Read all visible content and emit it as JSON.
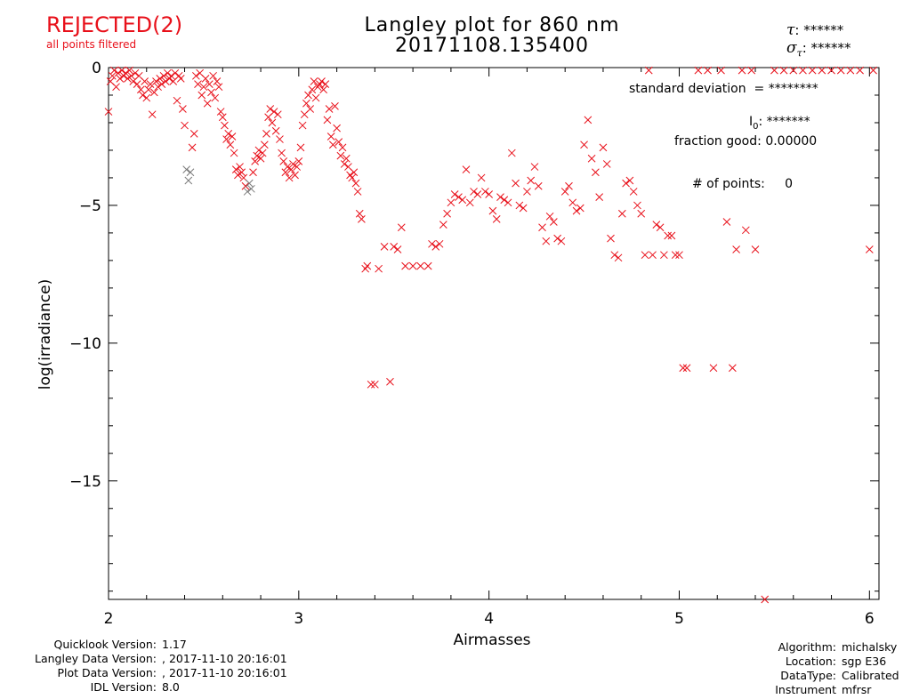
{
  "status": {
    "label": "REJECTED(2)",
    "sublabel": "all points filtered"
  },
  "header": {
    "title": "Langley plot for 860 nm",
    "subtitle": "20171108.135400",
    "tau_value": "******",
    "sigma_tau_value": "******"
  },
  "stats": {
    "std_label": "standard deviation",
    "std_value": "= ********",
    "i0_label": "I",
    "i0_sub": "0",
    "i0_value": ": *******",
    "fraction_label": "fraction good:",
    "fraction_value": "0.00000",
    "npoints_label": "# of points:",
    "npoints_value": "0"
  },
  "footer_left": [
    {
      "key": "Quicklook Version:",
      "value": "1.17"
    },
    {
      "key": "Langley Data Version:",
      "value": ", 2017-11-10 20:16:01"
    },
    {
      "key": "Plot Data Version:",
      "value": ", 2017-11-10 20:16:01"
    },
    {
      "key": "IDL Version:",
      "value": "8.0"
    }
  ],
  "footer_right": [
    {
      "key": "Algorithm:",
      "value": "michalsky"
    },
    {
      "key": "Location:",
      "value": "sgp E36"
    },
    {
      "key": "DataType:",
      "value": "Calibrated"
    },
    {
      "key": "Instrument",
      "value": "mfrsr"
    }
  ],
  "chart_data": {
    "type": "scatter",
    "xlabel": "Airmasses",
    "ylabel": "log(irradiance)",
    "xlim": [
      2,
      6.05
    ],
    "ylim": [
      -19.3,
      0
    ],
    "x_ticks": [
      2,
      3,
      4,
      5,
      6
    ],
    "y_ticks": [
      0,
      -5,
      -10,
      -15
    ],
    "marker": "x",
    "marker_color": "#e8101a",
    "dense_marker_color": "#7a7a7a",
    "series": [
      {
        "points": [
          [
            2.0,
            -1.6
          ],
          [
            2.01,
            -0.5
          ],
          [
            2.02,
            -0.3
          ],
          [
            2.03,
            -0.1
          ],
          [
            2.04,
            -0.7
          ],
          [
            2.05,
            -0.2
          ],
          [
            2.06,
            -0.4
          ],
          [
            2.07,
            -0.1
          ],
          [
            2.08,
            -0.3
          ],
          [
            2.09,
            -0.2
          ],
          [
            2.1,
            -0.4
          ],
          [
            2.11,
            -0.1
          ],
          [
            2.12,
            -0.3
          ],
          [
            2.13,
            -0.5
          ],
          [
            2.14,
            -0.2
          ],
          [
            2.15,
            -0.6
          ],
          [
            2.16,
            -0.3
          ],
          [
            2.17,
            -0.8
          ],
          [
            2.18,
            -1.0
          ],
          [
            2.19,
            -0.5
          ],
          [
            2.2,
            -1.1
          ],
          [
            2.21,
            -0.8
          ],
          [
            2.22,
            -0.6
          ],
          [
            2.23,
            -1.7
          ],
          [
            2.24,
            -0.9
          ],
          [
            2.25,
            -0.5
          ],
          [
            2.26,
            -0.7
          ],
          [
            2.27,
            -0.4
          ],
          [
            2.28,
            -0.6
          ],
          [
            2.29,
            -0.3
          ],
          [
            2.3,
            -0.5
          ],
          [
            2.31,
            -0.2
          ],
          [
            2.32,
            -0.4
          ],
          [
            2.33,
            -0.3
          ],
          [
            2.34,
            -0.5
          ],
          [
            2.35,
            -0.2
          ],
          [
            2.36,
            -1.2
          ],
          [
            2.37,
            -0.3
          ],
          [
            2.38,
            -0.4
          ],
          [
            2.39,
            -1.5
          ],
          [
            2.4,
            -2.1
          ],
          [
            2.41,
            -3.7
          ],
          [
            2.42,
            -4.1
          ],
          [
            2.43,
            -3.8
          ],
          [
            2.44,
            -2.9
          ],
          [
            2.45,
            -2.4
          ],
          [
            2.46,
            -0.3
          ],
          [
            2.47,
            -0.6
          ],
          [
            2.48,
            -0.2
          ],
          [
            2.49,
            -1.0
          ],
          [
            2.5,
            -0.7
          ],
          [
            2.51,
            -0.4
          ],
          [
            2.52,
            -1.3
          ],
          [
            2.53,
            -0.6
          ],
          [
            2.54,
            -0.9
          ],
          [
            2.55,
            -0.3
          ],
          [
            2.56,
            -1.1
          ],
          [
            2.57,
            -0.5
          ],
          [
            2.58,
            -0.7
          ],
          [
            2.59,
            -1.6
          ],
          [
            2.6,
            -1.8
          ],
          [
            2.61,
            -2.1
          ],
          [
            2.62,
            -2.6
          ],
          [
            2.63,
            -2.4
          ],
          [
            2.64,
            -2.8
          ],
          [
            2.65,
            -2.5
          ],
          [
            2.66,
            -3.1
          ],
          [
            2.67,
            -3.7
          ],
          [
            2.68,
            -3.9
          ],
          [
            2.69,
            -3.6
          ],
          [
            2.7,
            -3.8
          ],
          [
            2.71,
            -4.0
          ],
          [
            2.72,
            -4.3
          ],
          [
            2.73,
            -4.5
          ],
          [
            2.74,
            -4.2
          ],
          [
            2.75,
            -4.4
          ],
          [
            2.76,
            -3.8
          ],
          [
            2.77,
            -3.4
          ],
          [
            2.78,
            -3.2
          ],
          [
            2.79,
            -3.0
          ],
          [
            2.8,
            -3.3
          ],
          [
            2.81,
            -3.1
          ],
          [
            2.82,
            -2.8
          ],
          [
            2.83,
            -2.4
          ],
          [
            2.84,
            -1.8
          ],
          [
            2.85,
            -1.5
          ],
          [
            2.86,
            -2.0
          ],
          [
            2.87,
            -1.6
          ],
          [
            2.88,
            -2.3
          ],
          [
            2.89,
            -1.7
          ],
          [
            2.9,
            -2.6
          ],
          [
            2.91,
            -3.1
          ],
          [
            2.92,
            -3.4
          ],
          [
            2.93,
            -3.8
          ],
          [
            2.94,
            -3.6
          ],
          [
            2.95,
            -4.0
          ],
          [
            2.96,
            -3.7
          ],
          [
            2.97,
            -3.5
          ],
          [
            2.98,
            -3.9
          ],
          [
            2.99,
            -3.6
          ],
          [
            3.0,
            -3.4
          ],
          [
            3.01,
            -2.9
          ],
          [
            3.02,
            -2.1
          ],
          [
            3.03,
            -1.7
          ],
          [
            3.04,
            -1.3
          ],
          [
            3.05,
            -1.0
          ],
          [
            3.06,
            -1.5
          ],
          [
            3.07,
            -0.8
          ],
          [
            3.08,
            -0.5
          ],
          [
            3.09,
            -1.1
          ],
          [
            3.1,
            -0.7
          ],
          [
            3.11,
            -0.6
          ],
          [
            3.12,
            -0.5
          ],
          [
            3.13,
            -0.8
          ],
          [
            3.14,
            -0.6
          ],
          [
            3.15,
            -1.9
          ],
          [
            3.16,
            -1.5
          ],
          [
            3.17,
            -2.5
          ],
          [
            3.18,
            -2.8
          ],
          [
            3.19,
            -1.4
          ],
          [
            3.2,
            -2.2
          ],
          [
            3.21,
            -2.7
          ],
          [
            3.22,
            -3.2
          ],
          [
            3.23,
            -2.9
          ],
          [
            3.24,
            -3.5
          ],
          [
            3.25,
            -3.3
          ],
          [
            3.26,
            -3.6
          ],
          [
            3.27,
            -3.9
          ],
          [
            3.28,
            -4.0
          ],
          [
            3.29,
            -3.8
          ],
          [
            3.3,
            -4.2
          ],
          [
            3.31,
            -4.5
          ],
          [
            3.32,
            -5.3
          ],
          [
            3.33,
            -5.5
          ],
          [
            3.35,
            -7.3
          ],
          [
            3.36,
            -7.2
          ],
          [
            3.38,
            -11.5
          ],
          [
            3.4,
            -11.5
          ],
          [
            3.42,
            -7.3
          ],
          [
            3.45,
            -6.5
          ],
          [
            3.48,
            -11.4
          ],
          [
            3.5,
            -6.5
          ],
          [
            3.52,
            -6.6
          ],
          [
            3.54,
            -5.8
          ],
          [
            3.56,
            -7.2
          ],
          [
            3.6,
            -7.2
          ],
          [
            3.64,
            -7.2
          ],
          [
            3.68,
            -7.2
          ],
          [
            3.7,
            -6.4
          ],
          [
            3.72,
            -6.5
          ],
          [
            3.74,
            -6.4
          ],
          [
            3.76,
            -5.7
          ],
          [
            3.78,
            -5.3
          ],
          [
            3.8,
            -4.9
          ],
          [
            3.82,
            -4.6
          ],
          [
            3.84,
            -4.7
          ],
          [
            3.86,
            -4.8
          ],
          [
            3.88,
            -3.7
          ],
          [
            3.9,
            -4.9
          ],
          [
            3.92,
            -4.5
          ],
          [
            3.94,
            -4.6
          ],
          [
            3.96,
            -4.0
          ],
          [
            3.98,
            -4.5
          ],
          [
            4.0,
            -4.6
          ],
          [
            4.02,
            -5.2
          ],
          [
            4.04,
            -5.5
          ],
          [
            4.06,
            -4.7
          ],
          [
            4.08,
            -4.8
          ],
          [
            4.1,
            -4.9
          ],
          [
            4.12,
            -3.1
          ],
          [
            4.14,
            -4.2
          ],
          [
            4.16,
            -5.0
          ],
          [
            4.18,
            -5.1
          ],
          [
            4.2,
            -4.5
          ],
          [
            4.22,
            -4.1
          ],
          [
            4.24,
            -3.6
          ],
          [
            4.26,
            -4.3
          ],
          [
            4.28,
            -5.8
          ],
          [
            4.3,
            -6.3
          ],
          [
            4.32,
            -5.4
          ],
          [
            4.34,
            -5.6
          ],
          [
            4.36,
            -6.2
          ],
          [
            4.38,
            -6.3
          ],
          [
            4.4,
            -4.5
          ],
          [
            4.42,
            -4.3
          ],
          [
            4.44,
            -4.9
          ],
          [
            4.46,
            -5.2
          ],
          [
            4.48,
            -5.1
          ],
          [
            4.5,
            -2.8
          ],
          [
            4.52,
            -1.9
          ],
          [
            4.54,
            -3.3
          ],
          [
            4.56,
            -3.8
          ],
          [
            4.58,
            -4.7
          ],
          [
            4.6,
            -2.9
          ],
          [
            4.62,
            -3.5
          ],
          [
            4.64,
            -6.2
          ],
          [
            4.66,
            -6.8
          ],
          [
            4.68,
            -6.9
          ],
          [
            4.7,
            -5.3
          ],
          [
            4.72,
            -4.2
          ],
          [
            4.74,
            -4.1
          ],
          [
            4.76,
            -4.5
          ],
          [
            4.78,
            -5.0
          ],
          [
            4.8,
            -5.3
          ],
          [
            4.82,
            -6.8
          ],
          [
            4.84,
            -0.1
          ],
          [
            4.86,
            -6.8
          ],
          [
            4.88,
            -5.7
          ],
          [
            4.9,
            -5.8
          ],
          [
            4.92,
            -6.8
          ],
          [
            4.94,
            -6.1
          ],
          [
            4.96,
            -6.1
          ],
          [
            4.98,
            -6.8
          ],
          [
            5.0,
            -6.8
          ],
          [
            5.02,
            -10.9
          ],
          [
            5.04,
            -10.9
          ],
          [
            5.1,
            -0.1
          ],
          [
            5.15,
            -0.1
          ],
          [
            5.18,
            -10.9
          ],
          [
            5.22,
            -0.1
          ],
          [
            5.25,
            -5.6
          ],
          [
            5.28,
            -10.9
          ],
          [
            5.3,
            -6.6
          ],
          [
            5.33,
            -0.1
          ],
          [
            5.35,
            -5.9
          ],
          [
            5.38,
            -0.1
          ],
          [
            5.4,
            -6.6
          ],
          [
            5.45,
            -19.3
          ],
          [
            5.5,
            -0.1
          ],
          [
            5.55,
            -0.1
          ],
          [
            5.6,
            -0.1
          ],
          [
            5.65,
            -0.1
          ],
          [
            5.7,
            -0.1
          ],
          [
            5.75,
            -0.1
          ],
          [
            5.8,
            -0.1
          ],
          [
            5.85,
            -0.1
          ],
          [
            5.9,
            -0.1
          ],
          [
            5.95,
            -0.1
          ],
          [
            6.0,
            -6.6
          ],
          [
            6.02,
            -0.1
          ]
        ]
      }
    ]
  }
}
